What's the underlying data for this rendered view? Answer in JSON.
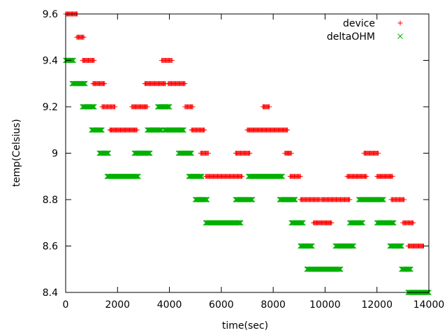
{
  "chart_data": {
    "type": "scatter",
    "xlabel": "time(sec)",
    "ylabel": "temp(Celsius)",
    "xlim": [
      0,
      14000
    ],
    "ylim": [
      8.4,
      9.6
    ],
    "x_ticks": [
      "0",
      "2000",
      "4000",
      "6000",
      "8000",
      "10000",
      "12000",
      "14000"
    ],
    "y_ticks": [
      "8.4",
      "8.6",
      "8.8",
      "9",
      "9.2",
      "9.4",
      "9.6"
    ],
    "x_tick_values": [
      0,
      2000,
      4000,
      6000,
      8000,
      10000,
      12000,
      14000
    ],
    "y_tick_values": [
      8.4,
      8.6,
      8.8,
      9.0,
      9.2,
      9.4,
      9.6
    ],
    "grid": false,
    "legend_position": "top-right",
    "series": [
      {
        "name": "device",
        "marker": "plus",
        "color": "#ff0000",
        "segments": [
          {
            "y": 9.6,
            "x_start": 0,
            "x_end": 450
          },
          {
            "y": 9.5,
            "x_start": 430,
            "x_end": 700
          },
          {
            "y": 9.4,
            "x_start": 650,
            "x_end": 1100
          },
          {
            "y": 9.3,
            "x_start": 1050,
            "x_end": 1500
          },
          {
            "y": 9.2,
            "x_start": 1400,
            "x_end": 1900
          },
          {
            "y": 9.1,
            "x_start": 1700,
            "x_end": 2750
          },
          {
            "y": 9.2,
            "x_start": 2550,
            "x_end": 3150
          },
          {
            "y": 9.3,
            "x_start": 3050,
            "x_end": 3850
          },
          {
            "y": 9.4,
            "x_start": 3700,
            "x_end": 4100
          },
          {
            "y": 9.3,
            "x_start": 3950,
            "x_end": 4600
          },
          {
            "y": 9.2,
            "x_start": 4600,
            "x_end": 4900
          },
          {
            "y": 9.1,
            "x_start": 4850,
            "x_end": 5350
          },
          {
            "y": 9.0,
            "x_start": 5200,
            "x_end": 5500
          },
          {
            "y": 8.9,
            "x_start": 5400,
            "x_end": 6800
          },
          {
            "y": 9.0,
            "x_start": 6550,
            "x_end": 7100
          },
          {
            "y": 9.1,
            "x_start": 7000,
            "x_end": 8550
          },
          {
            "y": 9.2,
            "x_start": 7600,
            "x_end": 7850
          },
          {
            "y": 9.0,
            "x_start": 8450,
            "x_end": 8700
          },
          {
            "y": 8.9,
            "x_start": 8650,
            "x_end": 9050
          },
          {
            "y": 8.8,
            "x_start": 9050,
            "x_end": 9800
          },
          {
            "y": 8.7,
            "x_start": 9550,
            "x_end": 10250
          },
          {
            "y": 8.8,
            "x_start": 9850,
            "x_end": 10950
          },
          {
            "y": 8.9,
            "x_start": 10850,
            "x_end": 11600
          },
          {
            "y": 9.0,
            "x_start": 11500,
            "x_end": 12050
          },
          {
            "y": 8.9,
            "x_start": 12000,
            "x_end": 12600
          },
          {
            "y": 8.8,
            "x_start": 12550,
            "x_end": 13050
          },
          {
            "y": 8.7,
            "x_start": 13000,
            "x_end": 13400
          },
          {
            "y": 8.6,
            "x_start": 13200,
            "x_end": 13800
          }
        ]
      },
      {
        "name": "deltaOHM",
        "marker": "x",
        "color": "#00b000",
        "segments": [
          {
            "y": 9.4,
            "x_start": 0,
            "x_end": 300
          },
          {
            "y": 9.3,
            "x_start": 250,
            "x_end": 750
          },
          {
            "y": 9.2,
            "x_start": 650,
            "x_end": 1100
          },
          {
            "y": 9.1,
            "x_start": 1000,
            "x_end": 1400
          },
          {
            "y": 9.0,
            "x_start": 1300,
            "x_end": 1650
          },
          {
            "y": 8.9,
            "x_start": 1600,
            "x_end": 2800
          },
          {
            "y": 9.0,
            "x_start": 2650,
            "x_end": 3250
          },
          {
            "y": 9.1,
            "x_start": 3150,
            "x_end": 3700
          },
          {
            "y": 9.2,
            "x_start": 3550,
            "x_end": 4000
          },
          {
            "y": 9.1,
            "x_start": 3800,
            "x_end": 4550
          },
          {
            "y": 9.0,
            "x_start": 4350,
            "x_end": 4850
          },
          {
            "y": 8.9,
            "x_start": 4750,
            "x_end": 5250
          },
          {
            "y": 8.8,
            "x_start": 5000,
            "x_end": 5450
          },
          {
            "y": 8.7,
            "x_start": 5400,
            "x_end": 6750
          },
          {
            "y": 8.8,
            "x_start": 6550,
            "x_end": 7200
          },
          {
            "y": 8.9,
            "x_start": 7050,
            "x_end": 8350
          },
          {
            "y": 8.8,
            "x_start": 8250,
            "x_end": 8850
          },
          {
            "y": 8.7,
            "x_start": 8700,
            "x_end": 9150
          },
          {
            "y": 8.6,
            "x_start": 9050,
            "x_end": 9500
          },
          {
            "y": 8.5,
            "x_start": 9300,
            "x_end": 10600
          },
          {
            "y": 8.6,
            "x_start": 10400,
            "x_end": 11100
          },
          {
            "y": 8.7,
            "x_start": 10950,
            "x_end": 11450
          },
          {
            "y": 8.8,
            "x_start": 11300,
            "x_end": 12250
          },
          {
            "y": 8.7,
            "x_start": 12000,
            "x_end": 12650
          },
          {
            "y": 8.6,
            "x_start": 12500,
            "x_end": 12950
          },
          {
            "y": 8.5,
            "x_start": 12950,
            "x_end": 13300
          },
          {
            "y": 8.4,
            "x_start": 13200,
            "x_end": 14000
          }
        ]
      }
    ]
  }
}
